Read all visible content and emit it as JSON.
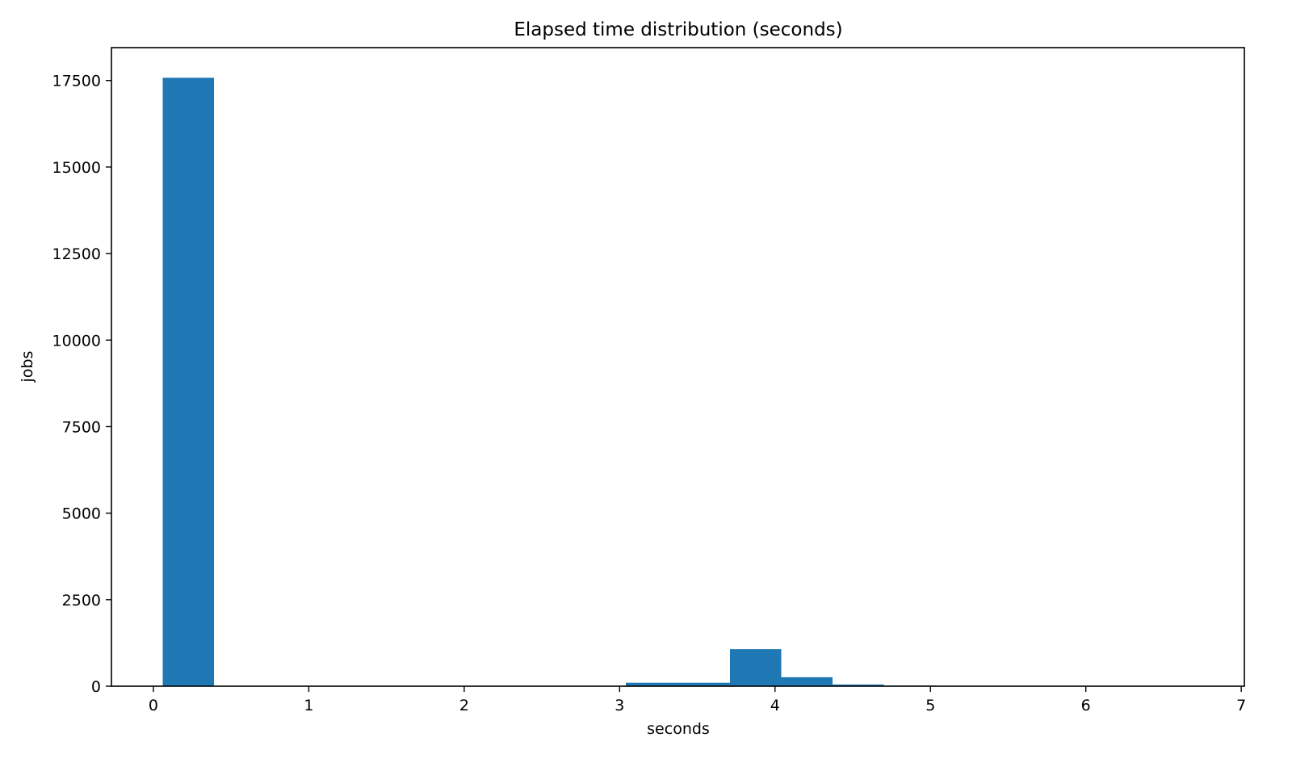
{
  "chart_data": {
    "type": "bar",
    "title": "Elapsed time distribution (seconds)",
    "xlabel": "seconds",
    "ylabel": "jobs",
    "xlim": [
      -0.27,
      7.02
    ],
    "ylim": [
      0,
      18450
    ],
    "xticks": [
      0,
      1,
      2,
      3,
      4,
      5,
      6,
      7
    ],
    "yticks": [
      0,
      2500,
      5000,
      7500,
      10000,
      12500,
      15000,
      17500
    ],
    "bar_color": "#1f77b4",
    "grid": false,
    "legend": "none",
    "bins": [
      {
        "x0": 0.06,
        "x1": 0.39,
        "value": 17580
      },
      {
        "x0": 0.39,
        "x1": 0.72,
        "value": 0
      },
      {
        "x0": 0.72,
        "x1": 1.05,
        "value": 0
      },
      {
        "x0": 1.05,
        "x1": 1.38,
        "value": 0
      },
      {
        "x0": 1.38,
        "x1": 1.72,
        "value": 0
      },
      {
        "x0": 1.72,
        "x1": 2.05,
        "value": 0
      },
      {
        "x0": 2.05,
        "x1": 2.38,
        "value": 0
      },
      {
        "x0": 2.38,
        "x1": 2.71,
        "value": 0
      },
      {
        "x0": 2.71,
        "x1": 3.04,
        "value": 0
      },
      {
        "x0": 3.04,
        "x1": 3.38,
        "value": 100
      },
      {
        "x0": 3.38,
        "x1": 3.71,
        "value": 100
      },
      {
        "x0": 3.71,
        "x1": 4.04,
        "value": 1070
      },
      {
        "x0": 4.04,
        "x1": 4.37,
        "value": 260
      },
      {
        "x0": 4.37,
        "x1": 4.7,
        "value": 50
      },
      {
        "x0": 4.7,
        "x1": 5.04,
        "value": 20
      },
      {
        "x0": 5.04,
        "x1": 5.37,
        "value": 5
      },
      {
        "x0": 5.37,
        "x1": 5.7,
        "value": 3
      },
      {
        "x0": 5.7,
        "x1": 6.03,
        "value": 2
      },
      {
        "x0": 6.03,
        "x1": 6.36,
        "value": 1
      },
      {
        "x0": 6.36,
        "x1": 6.7,
        "value": 1
      }
    ]
  }
}
